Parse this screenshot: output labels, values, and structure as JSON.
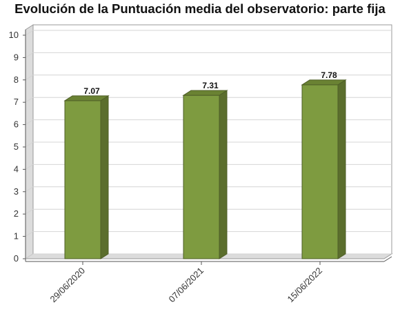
{
  "title": "Evolución de la Puntuación media del observatorio: parte fija",
  "colors": {
    "bar_front": "#7e9b40",
    "bar_side": "#5b6e2d",
    "bar_top": "#6a8233",
    "bar_outline": "#4f5f28",
    "grid": "#d4d4d4",
    "back_wall": "#ffffff",
    "side_wall": "#dcdcdc",
    "floor": "#dcdcdc",
    "axis": "#555555"
  },
  "chart_data": {
    "type": "bar",
    "categories": [
      "29/06/2020",
      "07/06/2021",
      "15/06/2022"
    ],
    "values": [
      7.07,
      7.31,
      7.78
    ],
    "value_labels": [
      "7.07",
      "7.31",
      "7.78"
    ],
    "title": "Evolución de la Puntuación media del observatorio: parte fija",
    "xlabel": "",
    "ylabel": "",
    "ylim": [
      0,
      10
    ],
    "yticks": [
      0,
      1,
      2,
      3,
      4,
      5,
      6,
      7,
      8,
      9,
      10
    ],
    "grid": true,
    "style": "3d"
  }
}
